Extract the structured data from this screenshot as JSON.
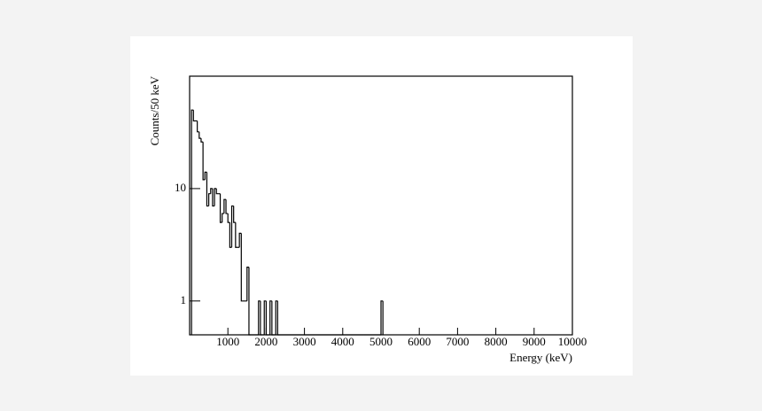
{
  "chart_data": {
    "type": "histogram",
    "x_label": "Energy (keV)",
    "y_label": "Counts/50 keV",
    "bins": [
      50,
      100,
      150,
      200,
      250,
      300,
      350,
      400,
      450,
      500,
      550,
      600,
      650,
      700,
      750,
      800,
      850,
      900,
      950,
      1000,
      1050,
      1100,
      1150,
      1200,
      1250,
      1300,
      1350,
      1400,
      1450,
      1500,
      1550,
      1600,
      1650,
      1700,
      1750,
      1800,
      1850,
      1900,
      1950,
      2000,
      2050,
      2100,
      2150,
      2200,
      2250,
      2300,
      2350,
      2400,
      2450,
      2500,
      2550,
      2600,
      2650,
      2700,
      2750,
      2800,
      2850,
      2900,
      2950,
      3000,
      3050,
      3100,
      3150,
      3200,
      3250,
      3300,
      3350,
      3400,
      3450,
      3500,
      3550,
      3600,
      3650,
      3700,
      3750,
      3800,
      3850,
      3900,
      3950,
      4000,
      4050,
      4100,
      4150,
      4200,
      4250,
      4300,
      4350,
      4400,
      4450,
      4500,
      4550,
      4600,
      4650,
      4700,
      4750,
      4800,
      4850,
      4900,
      4950,
      5000,
      5050
    ],
    "values": [
      50,
      40,
      40,
      32,
      28,
      26,
      12,
      14,
      7,
      9,
      10,
      7,
      10,
      9,
      9,
      5,
      6,
      8,
      6,
      5,
      3,
      7,
      5,
      3,
      3,
      4,
      1,
      1,
      1,
      2,
      0,
      0,
      0,
      0,
      0,
      1,
      0,
      0,
      1,
      0,
      0,
      1,
      0,
      0,
      1,
      0,
      0,
      0,
      0,
      0,
      0,
      0,
      0,
      0,
      0,
      0,
      0,
      0,
      0,
      0,
      0,
      0,
      0,
      0,
      0,
      0,
      0,
      0,
      0,
      0,
      0,
      0,
      0,
      0,
      0,
      0,
      0,
      0,
      0,
      0,
      0,
      0,
      0,
      0,
      0,
      0,
      0,
      0,
      0,
      0,
      0,
      0,
      0,
      0,
      0,
      0,
      0,
      0,
      0,
      1
    ],
    "color": "#000000",
    "xlim": [
      0,
      10000
    ],
    "xticks": [
      1000,
      2000,
      3000,
      4000,
      5000,
      6000,
      7000,
      8000,
      9000,
      10000
    ],
    "ylim": [
      0.5,
      100
    ],
    "yticks": [
      1,
      10
    ],
    "log_y": true,
    "grid": false
  }
}
